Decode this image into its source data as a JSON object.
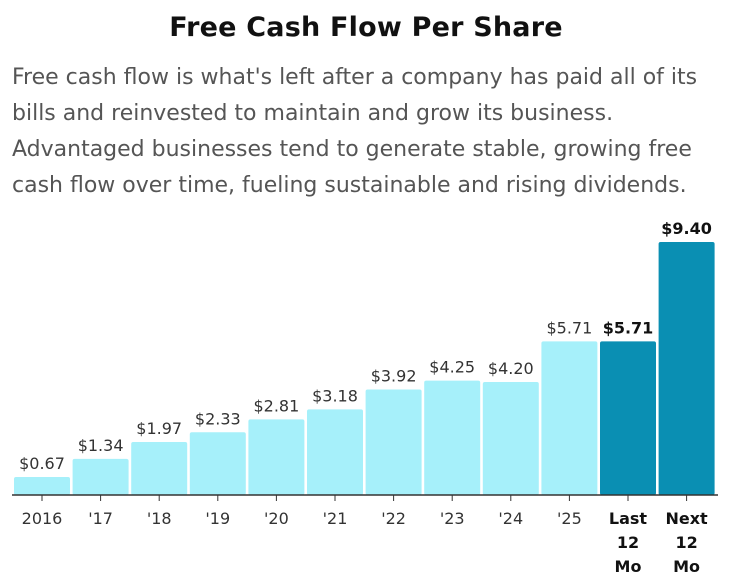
{
  "title": "Free Cash Flow Per Share",
  "description_lines": [
    "Free cash flow is what's left after a company has paid all of its",
    "bills and reinvested to maintain and grow its business.",
    "Advantaged businesses tend to generate stable, growing free",
    "cash flow over time, fueling sustainable and rising dividends."
  ],
  "colors": {
    "history_bar": "#a6f0fa",
    "highlight_bar": "#0a8fb3",
    "baseline": "#333333",
    "label_text": "#333333",
    "highlight_label_text": "#111111"
  },
  "chart_data": {
    "type": "bar",
    "title": "Free Cash Flow Per Share",
    "xlabel": "",
    "ylabel": "",
    "ylim": [
      0,
      9.4
    ],
    "categories": [
      "2016",
      "'17",
      "'18",
      "'19",
      "'20",
      "'21",
      "'22",
      "'23",
      "'24",
      "'25",
      "Last 12 Mo",
      "Next 12 Mo"
    ],
    "tick_labels": [
      [
        "2016"
      ],
      [
        "'17"
      ],
      [
        "'18"
      ],
      [
        "'19"
      ],
      [
        "'20"
      ],
      [
        "'21"
      ],
      [
        "'22"
      ],
      [
        "'23"
      ],
      [
        "'24"
      ],
      [
        "'25"
      ],
      [
        "Last",
        "12",
        "Mo"
      ],
      [
        "Next",
        "12",
        "Mo"
      ]
    ],
    "values": [
      0.67,
      1.34,
      1.97,
      2.33,
      2.81,
      3.18,
      3.92,
      4.25,
      4.2,
      5.71,
      5.71,
      9.4
    ],
    "value_labels": [
      "$0.67",
      "$1.34",
      "$1.97",
      "$2.33",
      "$2.81",
      "$3.18",
      "$3.92",
      "$4.25",
      "$4.20",
      "$5.71",
      "$5.71",
      "$9.40"
    ],
    "highlighted": [
      false,
      false,
      false,
      false,
      false,
      false,
      false,
      false,
      false,
      false,
      true,
      true
    ],
    "grid": false,
    "legend": "none"
  }
}
